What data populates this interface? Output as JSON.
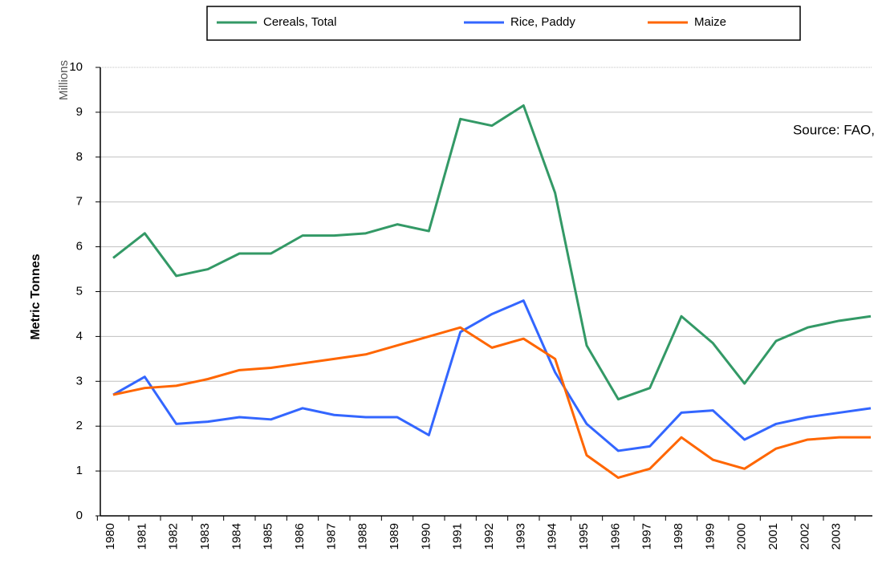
{
  "chart_data": {
    "type": "line",
    "y_label_units": "Millions",
    "y_label": "Metric Tonnes",
    "annotation": "Source: FAO,",
    "categories": [
      "1980",
      "1981",
      "1982",
      "1983",
      "1984",
      "1985",
      "1986",
      "1987",
      "1988",
      "1989",
      "1990",
      "1991",
      "1992",
      "1993",
      "1994",
      "1995",
      "1996",
      "1997",
      "1998",
      "1999",
      "2000",
      "2001",
      "2002",
      "2003",
      null
    ],
    "series": [
      {
        "name": "Cereals, Total",
        "color": "#339966",
        "values": [
          5.75,
          6.3,
          5.35,
          5.5,
          5.85,
          5.85,
          6.25,
          6.25,
          6.3,
          6.5,
          6.35,
          8.85,
          8.7,
          9.15,
          7.2,
          3.8,
          2.6,
          2.85,
          4.45,
          3.85,
          2.95,
          3.9,
          4.2,
          4.35,
          4.45
        ]
      },
      {
        "name": "Rice, Paddy",
        "color": "#3366ff",
        "values": [
          2.7,
          3.1,
          2.05,
          2.1,
          2.2,
          2.15,
          2.4,
          2.25,
          2.2,
          2.2,
          1.8,
          4.1,
          4.5,
          4.8,
          3.2,
          2.05,
          1.45,
          1.55,
          2.3,
          2.35,
          1.7,
          2.05,
          2.2,
          2.3,
          2.4
        ]
      },
      {
        "name": "Maize",
        "color": "#ff6600",
        "values": [
          2.7,
          2.85,
          2.9,
          3.05,
          3.25,
          3.3,
          3.4,
          3.5,
          3.6,
          3.8,
          4.0,
          4.2,
          3.75,
          3.95,
          3.5,
          1.35,
          0.85,
          1.05,
          1.75,
          1.25,
          1.05,
          1.5,
          1.7,
          1.75,
          1.75
        ]
      }
    ],
    "ylim": [
      0,
      10
    ],
    "yticks": [
      0,
      1,
      2,
      3,
      4,
      5,
      6,
      7,
      8,
      9,
      10
    ],
    "grid": true,
    "legend": "top"
  }
}
